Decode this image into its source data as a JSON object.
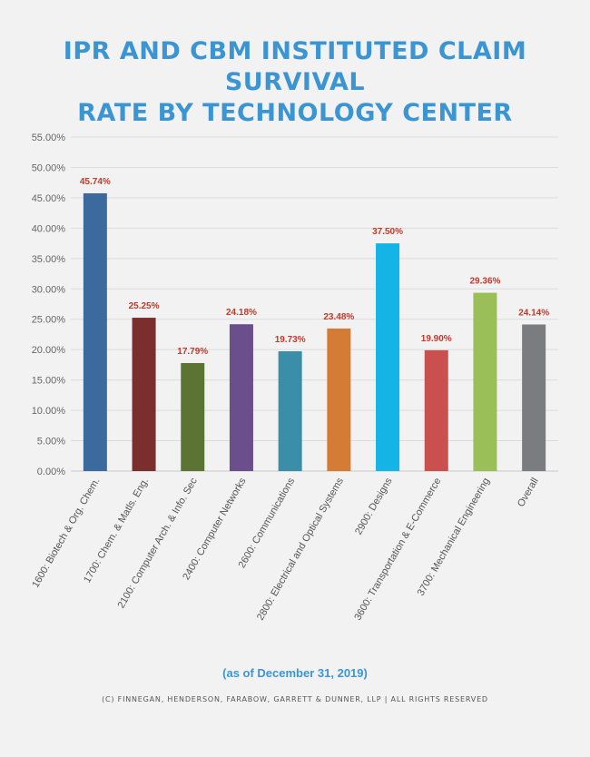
{
  "header": {
    "title_line1": "IPR AND CBM INSTITUTED CLAIM SURVIVAL",
    "title_line2": "RATE BY TECHNOLOGY CENTER"
  },
  "footer": {
    "note": "(as of December 31, 2019)",
    "copyright": "(C) FINNEGAN, HENDERSON, FARABOW, GARRETT & DUNNER, LLP | ALL RIGHTS RESERVED"
  },
  "chart_data": {
    "type": "bar",
    "title": "IPR AND CBM INSTITUTED CLAIM SURVIVAL RATE BY TECHNOLOGY CENTER",
    "xlabel": "",
    "ylabel": "",
    "ylim": [
      0,
      55
    ],
    "grid": true,
    "y_ticks": [
      "0.00%",
      "5.00%",
      "10.00%",
      "15.00%",
      "20.00%",
      "25.00%",
      "30.00%",
      "35.00%",
      "40.00%",
      "45.00%",
      "50.00%",
      "55.00%"
    ],
    "categories": [
      "1600: Biotech & Org. Chem.",
      "1700: Chem. & Matls. Eng.",
      "2100: Computer Arch. & Info. Sec",
      "2400: Computer Networks",
      "2600: Communications",
      "2800: Electrical and Optical Systems",
      "2900: Designs",
      "3600: Transportation & E-Commerce",
      "3700: Mechanical Engineering",
      "Overall"
    ],
    "values": [
      45.74,
      25.25,
      17.79,
      24.18,
      19.73,
      23.48,
      37.5,
      19.9,
      29.36,
      24.14
    ],
    "value_labels": [
      "45.74%",
      "25.25%",
      "17.79%",
      "24.18%",
      "19.73%",
      "23.48%",
      "37.50%",
      "19.90%",
      "29.36%",
      "24.14%"
    ],
    "colors": [
      "#3d6a9e",
      "#7b2e2e",
      "#5b7434",
      "#6b4f8c",
      "#3a8ea8",
      "#d47b35",
      "#14b4e6",
      "#c9504f",
      "#9bbf58",
      "#7a7c80"
    ],
    "label_color": "#c0392b"
  }
}
